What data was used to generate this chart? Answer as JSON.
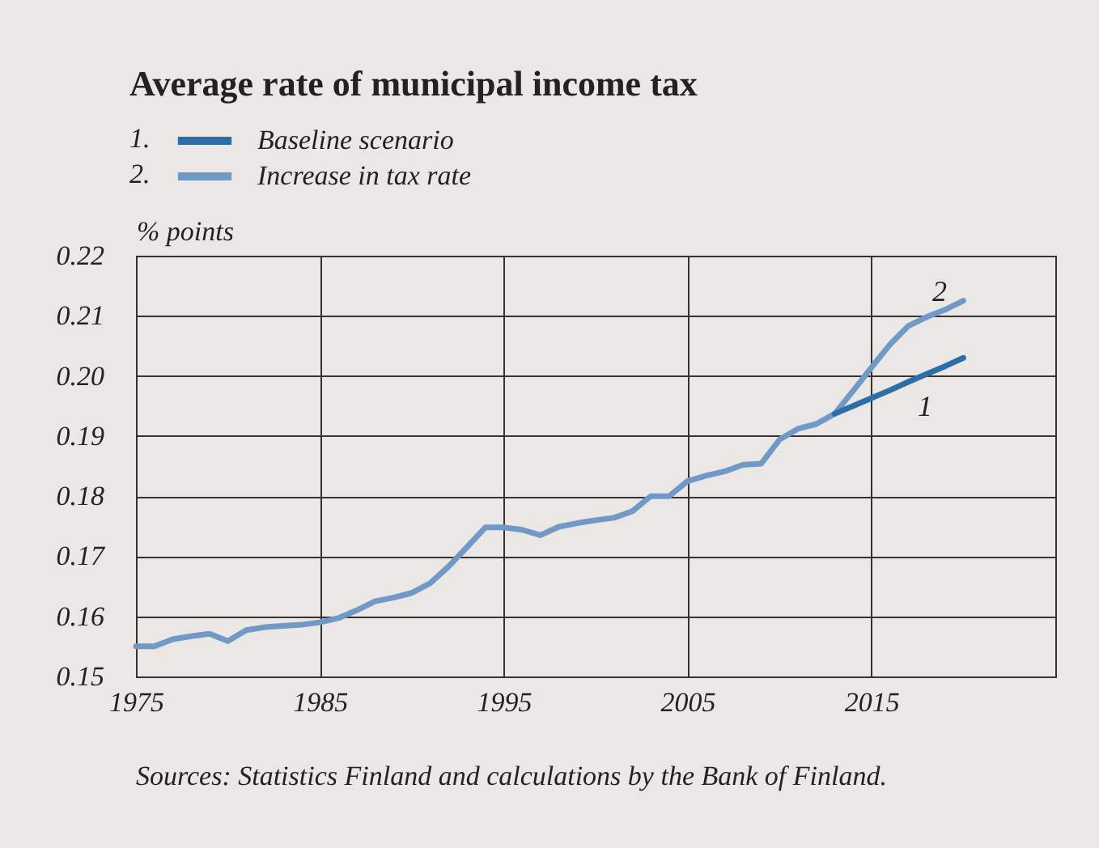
{
  "chart_data": {
    "type": "line",
    "title": "Average rate of municipal income tax",
    "ylabel": "% points",
    "x": [
      1975,
      1976,
      1977,
      1978,
      1979,
      1980,
      1981,
      1982,
      1983,
      1984,
      1985,
      1986,
      1987,
      1988,
      1989,
      1990,
      1991,
      1992,
      1993,
      1994,
      1995,
      1996,
      1997,
      1998,
      1999,
      2000,
      2001,
      2002,
      2003,
      2004,
      2005,
      2006,
      2007,
      2008,
      2009,
      2010,
      2011,
      2012,
      2013,
      2014,
      2015,
      2016,
      2017,
      2018,
      2019,
      2020
    ],
    "series": [
      {
        "name": "Baseline scenario",
        "color": "#2e6ea6",
        "x": [
          2013,
          2014,
          2015,
          2016,
          2017,
          2018,
          2019,
          2020
        ],
        "values": [
          0.1937,
          0.195,
          0.1963,
          0.1976,
          0.199,
          0.2003,
          0.2016,
          0.203
        ]
      },
      {
        "name": "Increase in tax rate",
        "color": "#7099c6",
        "values": [
          0.155,
          0.155,
          0.1562,
          0.1567,
          0.1571,
          0.1559,
          0.1577,
          0.1582,
          0.1584,
          0.1586,
          0.159,
          0.1597,
          0.161,
          0.1625,
          0.1631,
          0.1639,
          0.1655,
          0.1683,
          0.1715,
          0.1748,
          0.1748,
          0.1744,
          0.1735,
          0.1749,
          0.1755,
          0.176,
          0.1764,
          0.1775,
          0.18,
          0.18,
          0.1825,
          0.1834,
          0.1841,
          0.1852,
          0.1854,
          0.1894,
          0.1912,
          0.192,
          0.1937,
          0.1975,
          0.2014,
          0.2052,
          0.2083,
          0.2098,
          0.211,
          0.2125
        ]
      }
    ],
    "xlim": [
      1975,
      2025
    ],
    "xticks": [
      1975,
      1985,
      1995,
      2005,
      2015
    ],
    "ylim": [
      0.15,
      0.22
    ],
    "yticks": [
      0.15,
      0.16,
      0.17,
      0.18,
      0.19,
      {
        "value": 0.2,
        "label": "0.20"
      },
      0.21,
      0.22
    ],
    "grid": true,
    "legend": "top left",
    "marker": "none",
    "line_style": "solid",
    "annotations": [
      "1.",
      "2.",
      "1",
      "2",
      "Sources: Statistics Finland and calculations by the Bank of Finland."
    ]
  }
}
